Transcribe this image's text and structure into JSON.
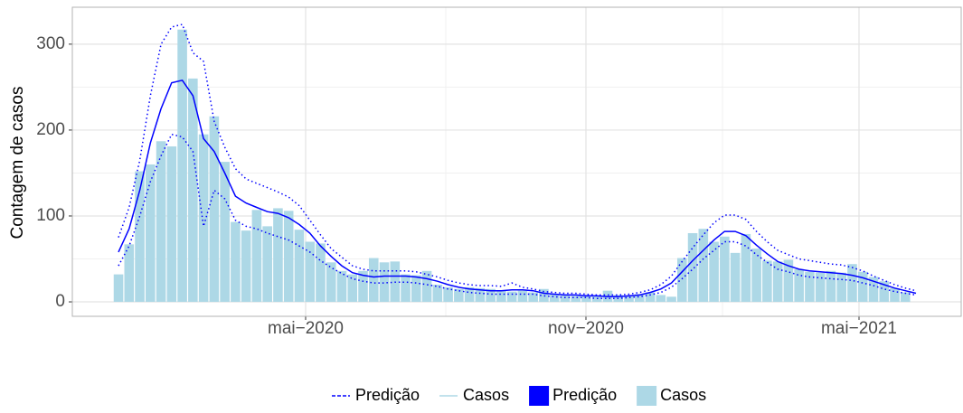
{
  "chart_data": {
    "type": "bar_line",
    "y_label": "Contagem de casos",
    "x": [
      0,
      1,
      2,
      3,
      4,
      5,
      6,
      7,
      8,
      9,
      10,
      11,
      12,
      13,
      14,
      15,
      16,
      17,
      18,
      19,
      20,
      21,
      22,
      23,
      24,
      25,
      26,
      27,
      28,
      29,
      30,
      31,
      32,
      33,
      34,
      35,
      36,
      37,
      38,
      39,
      40,
      41,
      42,
      43,
      44,
      45,
      46,
      47,
      48,
      49,
      50,
      51,
      52,
      53,
      54,
      55,
      56,
      57,
      58,
      59,
      60,
      61,
      62,
      63,
      64,
      65,
      66,
      67,
      68,
      69,
      70,
      71,
      72,
      73,
      74,
      75
    ],
    "xlim": [
      -4.34,
      79.25
    ],
    "xticks": [
      {
        "value": 17.6,
        "label": "mai−2020"
      },
      {
        "value": 43.96,
        "label": "nov−2020"
      },
      {
        "value": 69.64,
        "label": "mai−2021"
      }
    ],
    "ylim": [
      -16.8,
      343
    ],
    "yticks": [
      0,
      100,
      200,
      300
    ],
    "grid": true,
    "series": [
      {
        "name": "Casos",
        "kind": "bar",
        "color": "#add8e6",
        "values": [
          32,
          67,
          152,
          160,
          187,
          181,
          317,
          260,
          195,
          216,
          163,
          93,
          83,
          107,
          88,
          109,
          106,
          84,
          70,
          68,
          46,
          36,
          32,
          36,
          51,
          46,
          47,
          32,
          31,
          36,
          20,
          17,
          15,
          17,
          16,
          15,
          13,
          12,
          13,
          11,
          15,
          9,
          8,
          7,
          8,
          7,
          13,
          8,
          7,
          9,
          11,
          8,
          6,
          51,
          80,
          85,
          70,
          76,
          57,
          79,
          62,
          48,
          47,
          49,
          38,
          35,
          34,
          36,
          34,
          44,
          35,
          29,
          24,
          16,
          11,
          null
        ]
      },
      {
        "name": "Predição",
        "kind": "line",
        "color": "#0000ff",
        "values": [
          58,
          85,
          130,
          185,
          225,
          255,
          258,
          240,
          190,
          175,
          150,
          123,
          115,
          110,
          105,
          103,
          98,
          90,
          80,
          65,
          53,
          42,
          34,
          31,
          29,
          30,
          30,
          30,
          29,
          27,
          24,
          20,
          17,
          15,
          14,
          13,
          13,
          14,
          14,
          13,
          10,
          9,
          8,
          8,
          7,
          7,
          6,
          6,
          7,
          8,
          11,
          15,
          22,
          35,
          48,
          60,
          72,
          82,
          82,
          77,
          66,
          56,
          47,
          42,
          38,
          36,
          35,
          34,
          33,
          31,
          28,
          24,
          20,
          16,
          13,
          10
        ],
        "upper_values": [
          75,
          110,
          165,
          240,
          300,
          320,
          323,
          290,
          280,
          210,
          180,
          155,
          143,
          138,
          133,
          128,
          122,
          112,
          95,
          78,
          62,
          52,
          42,
          38,
          36,
          36,
          36,
          36,
          35,
          32,
          29,
          25,
          22,
          20,
          19,
          19,
          18,
          22,
          17,
          15,
          12,
          11,
          10,
          10,
          9,
          8,
          8,
          8,
          9,
          11,
          14,
          20,
          30,
          47,
          63,
          78,
          92,
          101,
          101,
          96,
          82,
          70,
          60,
          55,
          50,
          48,
          46,
          44,
          43,
          40,
          36,
          30,
          25,
          20,
          16,
          13
        ],
        "lower_values": [
          42,
          65,
          100,
          140,
          170,
          195,
          192,
          175,
          88,
          130,
          120,
          95,
          88,
          85,
          80,
          76,
          72,
          65,
          58,
          48,
          40,
          33,
          27,
          24,
          22,
          22,
          23,
          23,
          22,
          20,
          18,
          15,
          13,
          11,
          10,
          9,
          9,
          9,
          9,
          9,
          7,
          6,
          5,
          5,
          5,
          4,
          4,
          4,
          5,
          6,
          8,
          11,
          17,
          27,
          38,
          50,
          60,
          70,
          70,
          65,
          55,
          46,
          38,
          35,
          31,
          29,
          28,
          27,
          26,
          25,
          22,
          19,
          15,
          12,
          10,
          8
        ]
      }
    ],
    "legend": [
      {
        "label": "Predição",
        "kind": "dashed-line",
        "color": "#0000ff"
      },
      {
        "label": "Casos",
        "kind": "line",
        "color": "#add8e6"
      },
      {
        "label": "Predição",
        "kind": "box",
        "color": "#0000ff"
      },
      {
        "label": "Casos",
        "kind": "box",
        "color": "#add8e6"
      }
    ]
  }
}
